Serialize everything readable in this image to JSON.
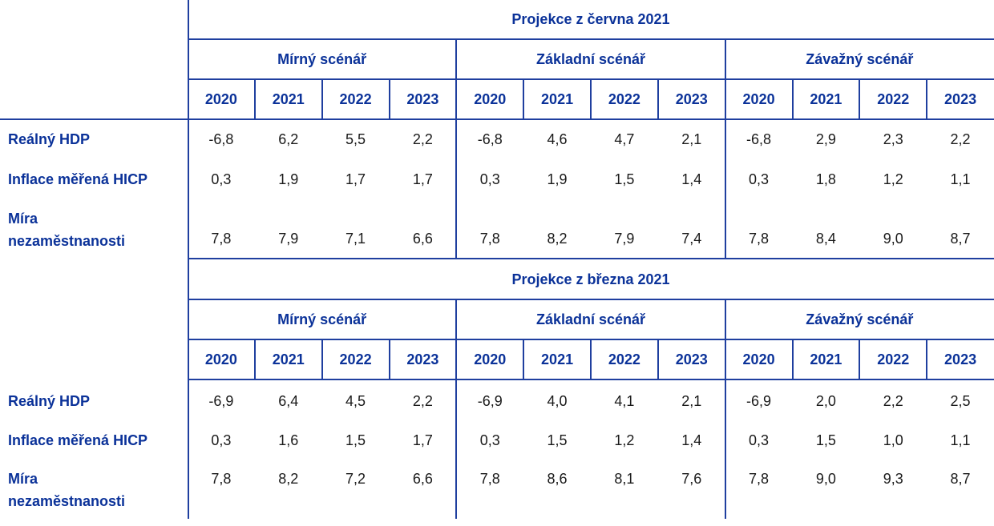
{
  "colors": {
    "header_blue": "#0b3299",
    "rule_blue": "#1f3f9f",
    "value_text": "#1a1a1a"
  },
  "blocks": [
    {
      "title": "Projekce z června 2021",
      "scenarios": [
        "Mírný scénář",
        "Základní scénář",
        "Závažný scénář"
      ],
      "years": [
        "2020",
        "2021",
        "2022",
        "2023"
      ],
      "rows": [
        {
          "label": "Reálný HDP",
          "values": [
            "-6,8",
            "6,2",
            "5,5",
            "2,2",
            "-6,8",
            "4,6",
            "4,7",
            "2,1",
            "-6,8",
            "2,9",
            "2,3",
            "2,2"
          ]
        },
        {
          "label": "Inflace měřená HICP",
          "values": [
            "0,3",
            "1,9",
            "1,7",
            "1,7",
            "0,3",
            "1,9",
            "1,5",
            "1,4",
            "0,3",
            "1,8",
            "1,2",
            "1,1"
          ]
        },
        {
          "label_line1": "Míra",
          "label_line2": "nezaměstnanosti",
          "values": [
            "7,8",
            "7,9",
            "7,1",
            "6,6",
            "7,8",
            "8,2",
            "7,9",
            "7,4",
            "7,8",
            "8,4",
            "9,0",
            "8,7"
          ]
        }
      ]
    },
    {
      "title": "Projekce z března 2021",
      "scenarios": [
        "Mírný scénář",
        "Základní scénář",
        "Závažný scénář"
      ],
      "years": [
        "2020",
        "2021",
        "2022",
        "2023"
      ],
      "rows": [
        {
          "label": "Reálný HDP",
          "values": [
            "-6,9",
            "6,4",
            "4,5",
            "2,2",
            "-6,9",
            "4,0",
            "4,1",
            "2,1",
            "-6,9",
            "2,0",
            "2,2",
            "2,5"
          ]
        },
        {
          "label": "Inflace měřená HICP",
          "values": [
            "0,3",
            "1,6",
            "1,5",
            "1,7",
            "0,3",
            "1,5",
            "1,2",
            "1,4",
            "0,3",
            "1,5",
            "1,0",
            "1,1"
          ]
        },
        {
          "label_line1": "Míra",
          "label_line2": "nezaměstnanosti",
          "values": [
            "7,8",
            "8,2",
            "7,2",
            "6,6",
            "7,8",
            "8,6",
            "8,1",
            "7,6",
            "7,8",
            "9,0",
            "9,3",
            "8,7"
          ]
        }
      ]
    }
  ]
}
